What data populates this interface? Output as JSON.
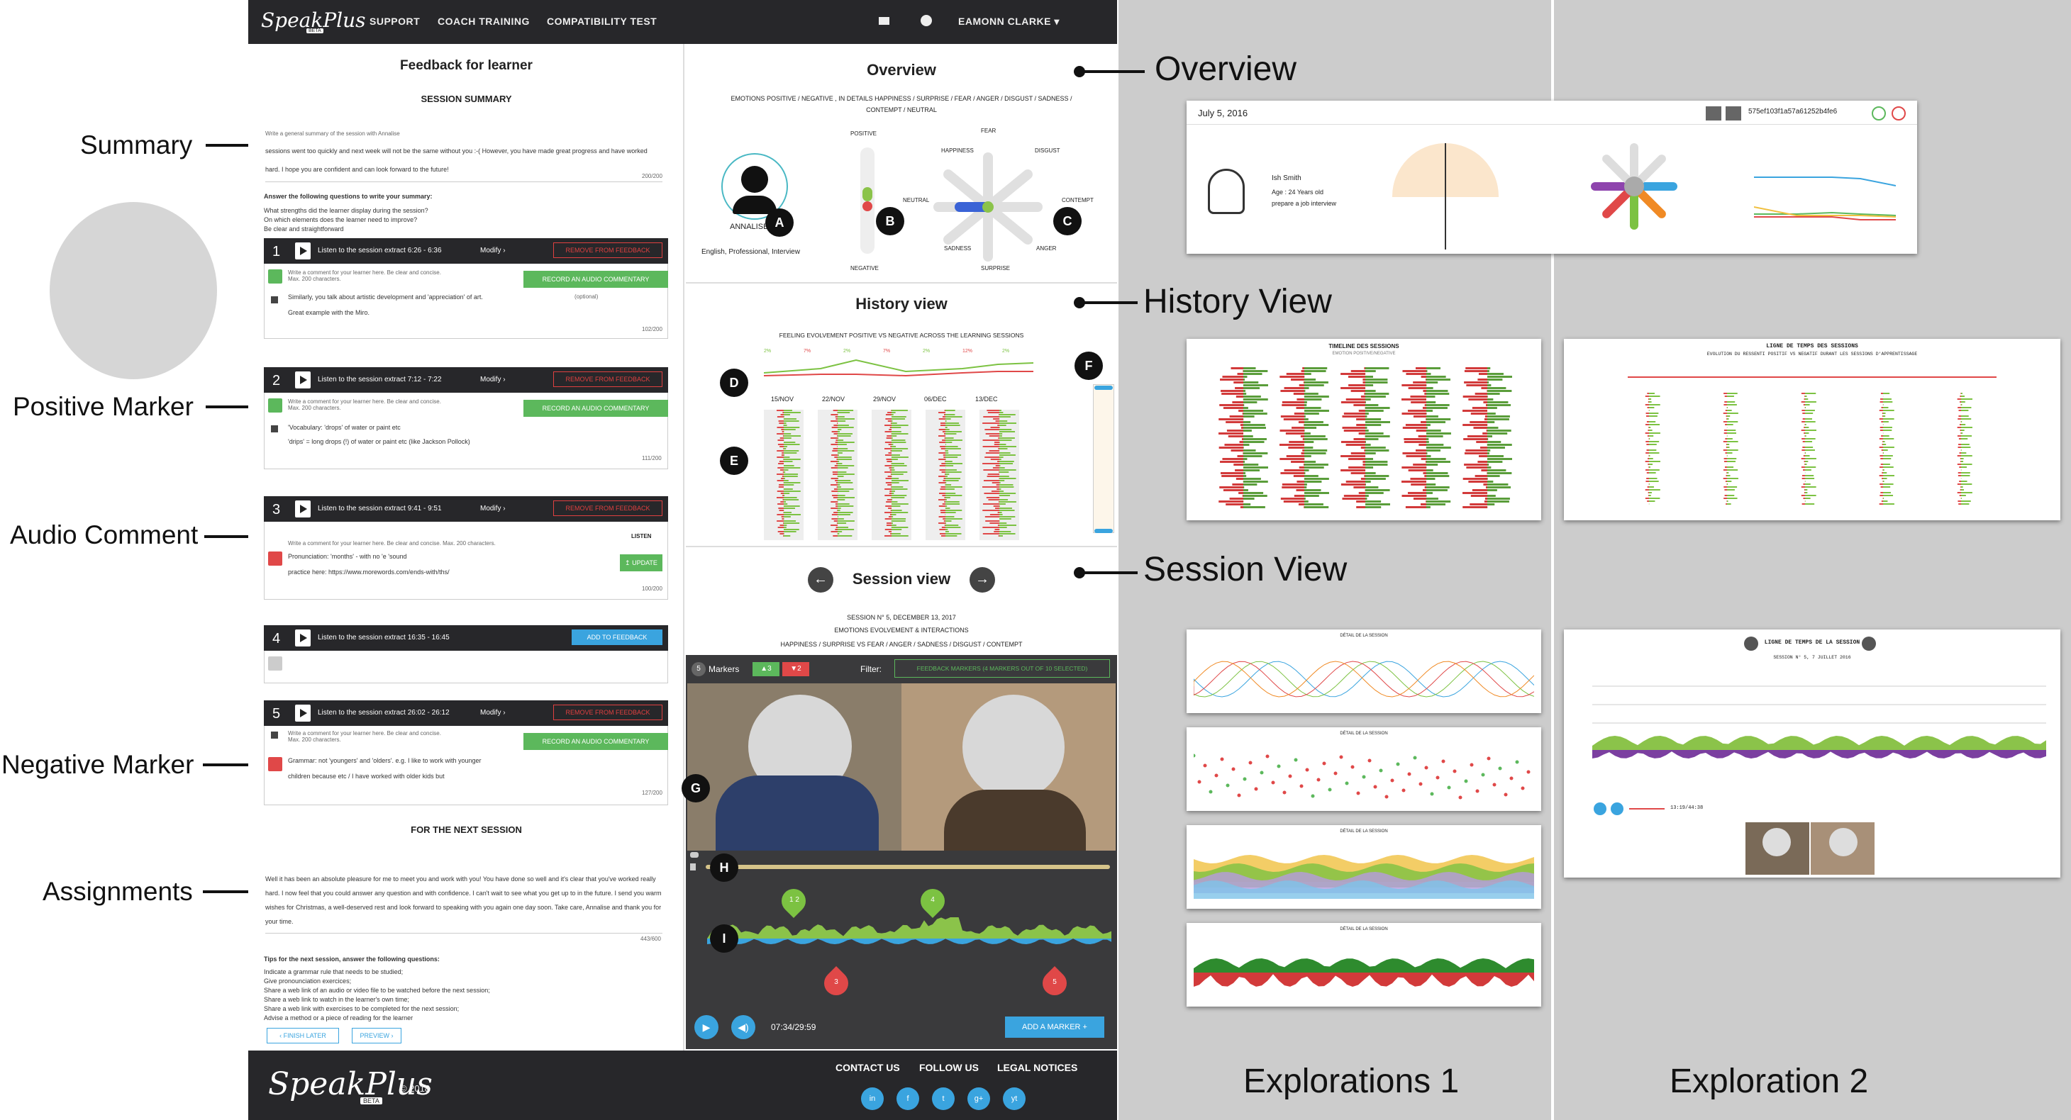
{
  "annotations": {
    "summary": "Summary",
    "positive_marker": "Positive Marker",
    "audio_comment": "Audio Comment",
    "negative_marker": "Negative Marker",
    "assignments": "Assignments",
    "overview": "Overview",
    "history_view": "History View",
    "session_view": "Session View",
    "explorations_1": "Explorations 1",
    "exploration_2": "Exploration 2"
  },
  "topbar": {
    "logo": "SpeakPlus",
    "logo_badge": "BETA",
    "nav": [
      "SUPPORT",
      "COACH TRAINING",
      "COMPATIBILITY TEST"
    ],
    "user": "EAMONN CLARKE"
  },
  "feedback": {
    "title": "Feedback for learner",
    "summary_heading": "SESSION SUMMARY",
    "summary_hint": "Write a general summary of the session with Annalise",
    "summary_text": "sessions went too quickly and  next week will not be the same without you :-( However, you have made great progress and have worked hard. I hope you are confident and can look forward to the future!",
    "summary_count": "200/200",
    "questions_heading": "Answer the following questions to write your summary:",
    "questions": [
      "What strengths did the learner display during the session?",
      "On which elements does the learner need to improve?",
      "Be clear and straightforward"
    ],
    "comment_placeholder": "Write a comment for your learner here. Be clear and concise. Max. 200 characters.",
    "clips": [
      {
        "num": "1",
        "label": "Listen to the session extract 6:26 - 6:36",
        "modify": "Modify",
        "action": "REMOVE FROM FEEDBACK",
        "audio": "RECORD AN AUDIO COMMENTARY",
        "optional": "(optional)",
        "text1": "Similarly, you talk about artistic development and 'appreciation' of art.",
        "text2": "Great example with the Miro.",
        "count": "102/200"
      },
      {
        "num": "2",
        "label": "Listen to the session extract 7:12 - 7:22",
        "modify": "Modify",
        "action": "REMOVE FROM FEEDBACK",
        "audio": "RECORD AN AUDIO COMMENTARY",
        "text1": "'Vocabulary: 'drops' of water or paint etc",
        "text2": "'drips' = long drops (!) of water or paint etc (like Jackson Pollock)",
        "count": "111/200"
      },
      {
        "num": "3",
        "label": "Listen to the session extract 9:41 - 9:51",
        "modify": "Modify",
        "action": "REMOVE FROM FEEDBACK",
        "listen": "LISTEN",
        "update": "UPDATE",
        "text1": "Pronunciation: 'months' - with no 'e 'sound",
        "text2": "practice here: https://www.morewords.com/ends-with/ths/",
        "count": "100/200"
      },
      {
        "num": "4",
        "label": "Listen to the session extract 16:35 - 16:45",
        "action": "ADD TO FEEDBACK"
      },
      {
        "num": "5",
        "label": "Listen to the session extract 26:02 - 26:12",
        "modify": "Modify",
        "action": "REMOVE FROM FEEDBACK",
        "audio": "RECORD AN AUDIO COMMENTARY",
        "text1": "Grammar: not 'youngers' and 'olders'. e.g. I like to work with younger",
        "text2": "children because etc / I have worked with older kids but",
        "count": "127/200"
      }
    ],
    "next_heading": "FOR THE NEXT SESSION",
    "next_text": "Well it has been an absolute pleasure for me to meet you and work with you! You have done so well and it's clear that you've worked really hard. I now feel that you could answer any question and with confidence. I can't wait to see what you get up to in the future. I send you warm wishes for Christmas, a well-deserved rest and look forward to speaking with you again one day soon. Take care, Annalise and thank you for your time.",
    "next_count": "443/600",
    "tips_heading": "Tips for the next session, answer the following questions:",
    "tips": [
      "Indicate a grammar rule that needs to be studied;",
      "Give pronounciation exercices;",
      "Share a web link of an audio or video file to be watched before the next session;",
      "Share a web link to watch in the learner's own time;",
      "Share a web link with exercises to be completed for the next session;",
      "Advise a method or a piece of reading for the learner"
    ],
    "finish_later": "FINISH LATER",
    "preview": "PREVIEW"
  },
  "overview": {
    "title": "Overview",
    "emotions_line": "EMOTIONS POSITIVE / NEGATIVE , IN DETAILS HAPPINESS / SURPRISE / FEAR / ANGER / DISGUST / SADNESS /",
    "emotions_line2": "CONTEMPT / NEUTRAL",
    "learner_name": "ANNALISE",
    "learner_tags": "English, Professional, Interview",
    "positive": "POSITIVE",
    "negative": "NEGATIVE",
    "axes": [
      "FEAR",
      "HAPPINESS",
      "DISGUST",
      "NEUTRAL",
      "CONTEMPT",
      "SADNESS",
      "ANGER",
      "SURPRISE"
    ],
    "markers": [
      "A",
      "B",
      "C"
    ]
  },
  "history": {
    "title": "History view",
    "subtitle": "FEELING EVOLVEMENT POSITIVE  VS  NEGATIVE ACROSS THE LEARNING SESSIONS",
    "dates": [
      "15/NOV",
      "22/NOV",
      "29/NOV",
      "06/DEC",
      "13/DEC"
    ],
    "pcts": [
      "2%",
      "7%",
      "2%",
      "7%",
      "2%",
      "12%",
      "2%"
    ],
    "markers": [
      "D",
      "E",
      "F"
    ]
  },
  "session": {
    "title": "Session view",
    "info": "SESSION N° 5, DECEMBER 13, 2017",
    "info2": "EMOTIONS EVOLVEMENT  &  INTERACTIONS",
    "info3": "HAPPINESS / SURPRISE  VS  FEAR / ANGER / SADNESS / DISGUST / CONTEMPT",
    "markers_count": "5",
    "markers_label": "Markers",
    "pos_count": "3",
    "neg_count": "2",
    "filter_label": "Filter:",
    "filter_value": "FEEDBACK MARKERS (4 MARKERS OUT OF 10 SELECTED)",
    "pins": [
      "1 2",
      "4",
      "3",
      "5"
    ],
    "time": "07:34/29:59",
    "add_marker": "ADD A MARKER +",
    "markers": [
      "G",
      "H",
      "I"
    ]
  },
  "footer": {
    "logo": "SpeakPlus",
    "badge": "BETA",
    "year": "© 2018",
    "links": [
      "CONTACT US",
      "FOLLOW US",
      "LEGAL NOTICES"
    ],
    "socials": [
      "in",
      "f",
      "t",
      "g+",
      "yt"
    ]
  },
  "explorations": {
    "overview_date": "July 5, 2016",
    "overview_id": "575ef103f1a57a61252b4fe6",
    "overview_user": "Ish Smith",
    "overview_age": "Age : 24 Years old",
    "overview_goal": "prepare a job interview",
    "hist1_title": "TIMELINE DES SESSIONS",
    "hist1_sub": "EMOTION POSITIVE/NEGATIVE",
    "hist2_title": "LIGNE DE TEMPS DES SESSIONS",
    "hist2_sub": "EVOLUTION DU RESSENTI POSITIF  VS  NEGATIF DURANT LES SESSIONS D'APPRENTISSAGE",
    "sess_title": "DÉTAIL DE LA SESSION",
    "sess2_title": "LIGNE DE TEMPS DE LA SESSION",
    "sess2_sub": "SESSION N° 5, 7 JUILLET 2016",
    "sess2_time": "13:19/44:38"
  }
}
